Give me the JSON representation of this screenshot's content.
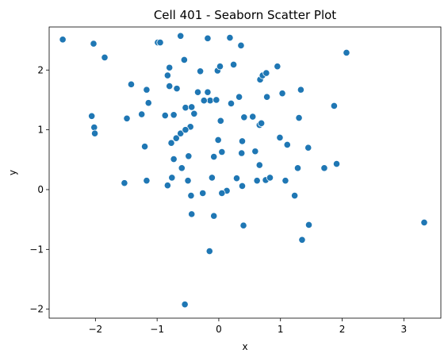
{
  "chart_data": {
    "type": "scatter",
    "title": "Cell 401 - Seaborn Scatter Plot",
    "xlabel": "x",
    "ylabel": "y",
    "xlim": [
      -2.75,
      3.6
    ],
    "ylim": [
      -2.15,
      2.72
    ],
    "xticks": [
      -2,
      -1,
      0,
      1,
      2,
      3
    ],
    "yticks": [
      -2,
      -1,
      0,
      1,
      2
    ],
    "xtick_labels": [
      "−2",
      "−1",
      "0",
      "1",
      "2",
      "3"
    ],
    "ytick_labels": [
      "−2",
      "−1",
      "0",
      "1",
      "2"
    ],
    "grid": false,
    "marker_color": "#1f77b4",
    "marker_edge_color": "#ffffff",
    "series": [
      {
        "x": [
          -2.53,
          -2.03,
          -1.85,
          -2.06,
          -2.02,
          -2.01,
          -1.42,
          -1.49,
          -1.53,
          -1.17,
          -1.25,
          -1.2,
          -1.17,
          -1.14,
          -0.99,
          -0.95,
          -0.87,
          -0.83,
          -0.8,
          -0.83,
          -0.8,
          -0.73,
          -0.69,
          -0.77,
          -0.73,
          -0.76,
          -0.62,
          -0.68,
          -0.56,
          -0.54,
          -0.62,
          -0.6,
          -0.5,
          -0.45,
          -0.44,
          -0.4,
          -0.46,
          -0.44,
          -0.54,
          -0.34,
          -0.3,
          -0.26,
          -0.18,
          -0.14,
          -0.11,
          -0.08,
          -0.04,
          -0.02,
          -0.01,
          0.02,
          0.03,
          0.05,
          0.13,
          0.18,
          0.2,
          0.24,
          0.33,
          0.37,
          0.38,
          0.36,
          0.4,
          0.05,
          0.55,
          0.59,
          0.62,
          0.67,
          0.66,
          0.69,
          0.71,
          0.76,
          0.77,
          0.78,
          0.66,
          0.83,
          0.95,
          0.99,
          1.08,
          1.03,
          1.11,
          1.23,
          1.28,
          1.33,
          1.35,
          1.45,
          1.46,
          1.3,
          1.71,
          1.87,
          1.91,
          2.07,
          3.33,
          0.38,
          0.41,
          -0.15,
          -0.49,
          -0.08,
          -0.55,
          0.29,
          -0.24,
          -0.18
        ],
        "y": [
          2.51,
          2.44,
          2.21,
          1.23,
          1.04,
          0.94,
          1.76,
          1.19,
          0.11,
          1.67,
          1.26,
          0.72,
          0.15,
          1.45,
          2.46,
          2.46,
          1.24,
          0.07,
          2.04,
          1.91,
          1.73,
          1.25,
          0.86,
          0.78,
          0.51,
          0.2,
          2.57,
          1.69,
          2.17,
          1.37,
          0.94,
          0.36,
          0.15,
          -0.1,
          -0.41,
          1.27,
          1.05,
          1.38,
          1.0,
          1.63,
          1.98,
          -0.06,
          2.53,
          1.49,
          0.2,
          0.55,
          1.5,
          1.99,
          0.83,
          2.06,
          1.15,
          0.63,
          -0.02,
          2.54,
          1.44,
          2.09,
          1.55,
          0.61,
          0.06,
          2.41,
          -0.6,
          -0.06,
          1.22,
          0.64,
          0.15,
          1.84,
          1.08,
          1.11,
          1.91,
          0.16,
          1.95,
          1.55,
          0.41,
          0.2,
          2.06,
          0.87,
          0.15,
          1.61,
          0.75,
          -0.1,
          0.36,
          1.67,
          -0.84,
          0.7,
          -0.59,
          1.2,
          0.36,
          1.4,
          0.43,
          2.29,
          -0.55,
          0.81,
          1.21,
          -1.03,
          0.56,
          -0.44,
          -1.92,
          0.19,
          1.49,
          1.63
        ]
      }
    ]
  }
}
